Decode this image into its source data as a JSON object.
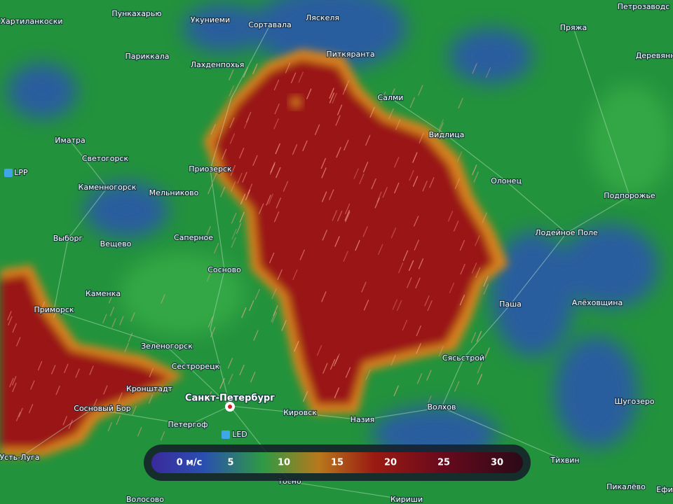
{
  "map": {
    "places": [
      "Пункахарью",
      "Хартиланкоски",
      "Укуниеми",
      "Сортавала",
      "Ляскеля",
      "Петрозаводс",
      "Пряжа",
      "Париккала",
      "Лахденпохья",
      "Питкяранта",
      "Деревянн",
      "Салми",
      "Иматра",
      "Светогорск",
      "Видлица",
      "LPP",
      "Приозерск",
      "Олонец",
      "Каменногорск",
      "Мельниково",
      "Подпорожье",
      "Лодейное Поле",
      "Выборг",
      "Вещево",
      "Саперное",
      "Сосново",
      "Каменка",
      "Паша",
      "Алёховщина",
      "Приморск",
      "Зеленогорск",
      "Сясьстрой",
      "Сестрорецк",
      "Кронштадт",
      "Санкт-Петербург",
      "Шугозеро",
      "Волхов",
      "Сосновый Бор",
      "Кировск",
      "Назия",
      "Петергоф",
      "LED",
      "Усть-Луга",
      "Тихвин",
      "Тосно",
      "Пикалёво",
      "Ефи",
      "Волосово",
      "Кириши"
    ],
    "legend": {
      "ticks": [
        {
          "value": 0,
          "label": "0 м/с"
        },
        5,
        10,
        15,
        20,
        25,
        30
      ]
    }
  }
}
